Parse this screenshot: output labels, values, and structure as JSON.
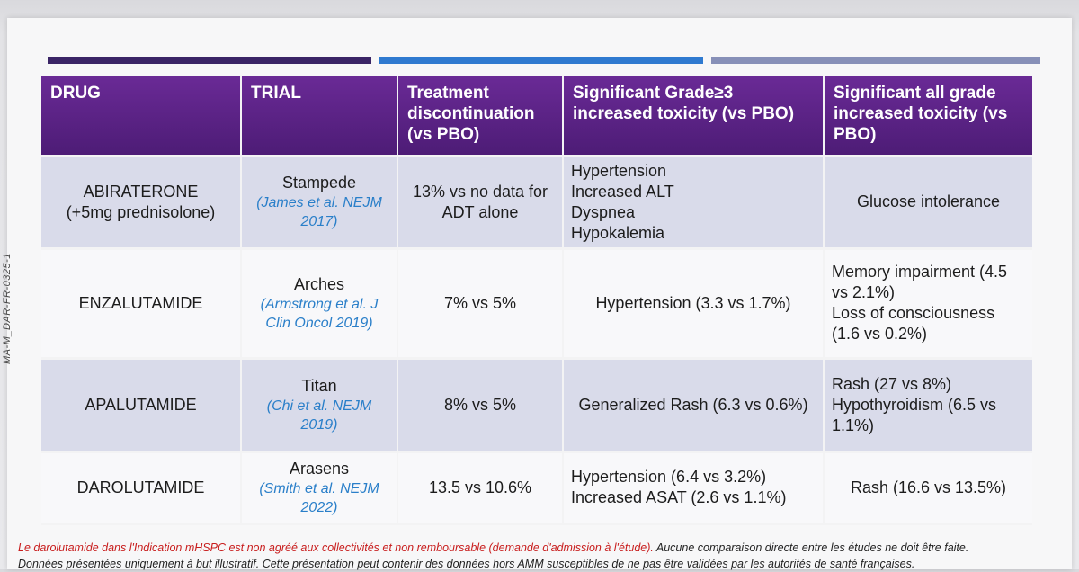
{
  "side_code": "MA-M_DAR-FR-0325-1",
  "colors": {
    "bar1": "#3a2566",
    "bar2": "#2f7ad0",
    "bar3": "#8790b8",
    "header": "#5a2286",
    "ref": "#2a7fc9",
    "note_red": "#c81d1d"
  },
  "headers": [
    "DRUG",
    "TRIAL",
    "Treatment discontinuation (vs PBO)",
    "Significant Grade≥3 increased toxicity (vs PBO)",
    "Significant all grade increased toxicity (vs PBO)"
  ],
  "rows": [
    {
      "drug": [
        "ABIRATERONE",
        "(+5mg prednisolone)"
      ],
      "trial": "Stampede",
      "ref": "(James et al. NEJM 2017)",
      "discontinuation": "13% vs no data for ADT alone",
      "grade3": [
        "Hypertension",
        "Increased ALT",
        "Dyspnea",
        "Hypokalemia"
      ],
      "all_grade": [
        "Glucose intolerance"
      ]
    },
    {
      "drug": [
        "ENZALUTAMIDE"
      ],
      "trial": "Arches",
      "ref": "(Armstrong et al. J Clin Oncol 2019)",
      "discontinuation": "7% vs 5%",
      "grade3": [
        "Hypertension (3.3 vs 1.7%)"
      ],
      "all_grade": [
        "Memory impairment (4.5 vs 2.1%)",
        "Loss of consciousness (1.6 vs 0.2%)"
      ]
    },
    {
      "drug": [
        "APALUTAMIDE"
      ],
      "trial": "Titan",
      "ref": "(Chi et al. NEJM 2019)",
      "discontinuation": "8% vs 5%",
      "grade3": [
        "Generalized Rash (6.3 vs 0.6%)"
      ],
      "all_grade": [
        "Rash (27 vs 8%)",
        "Hypothyroidism (6.5 vs 1.1%)"
      ]
    },
    {
      "drug": [
        "DAROLUTAMIDE"
      ],
      "trial": "Arasens",
      "ref": "(Smith et al. NEJM 2022)",
      "discontinuation": "13.5 vs 10.6%",
      "grade3": [
        "Hypertension (6.4 vs 3.2%)",
        "Increased ASAT (2.6 vs 1.1%)"
      ],
      "all_grade": [
        "Rash (16.6 vs 13.5%)"
      ]
    }
  ],
  "footnote": {
    "red": "Le darolutamide dans l'Indication mHSPC est non agréé aux collectivités et non remboursable (demande d'admission à l'étude).",
    "rest": " Aucune comparaison directe entre les études ne doit être faite.",
    "line2": "Données présentées uniquement à but illustratif. Cette présentation peut contenir des données hors AMM susceptibles de ne pas être validées par les autorités de santé françaises."
  }
}
